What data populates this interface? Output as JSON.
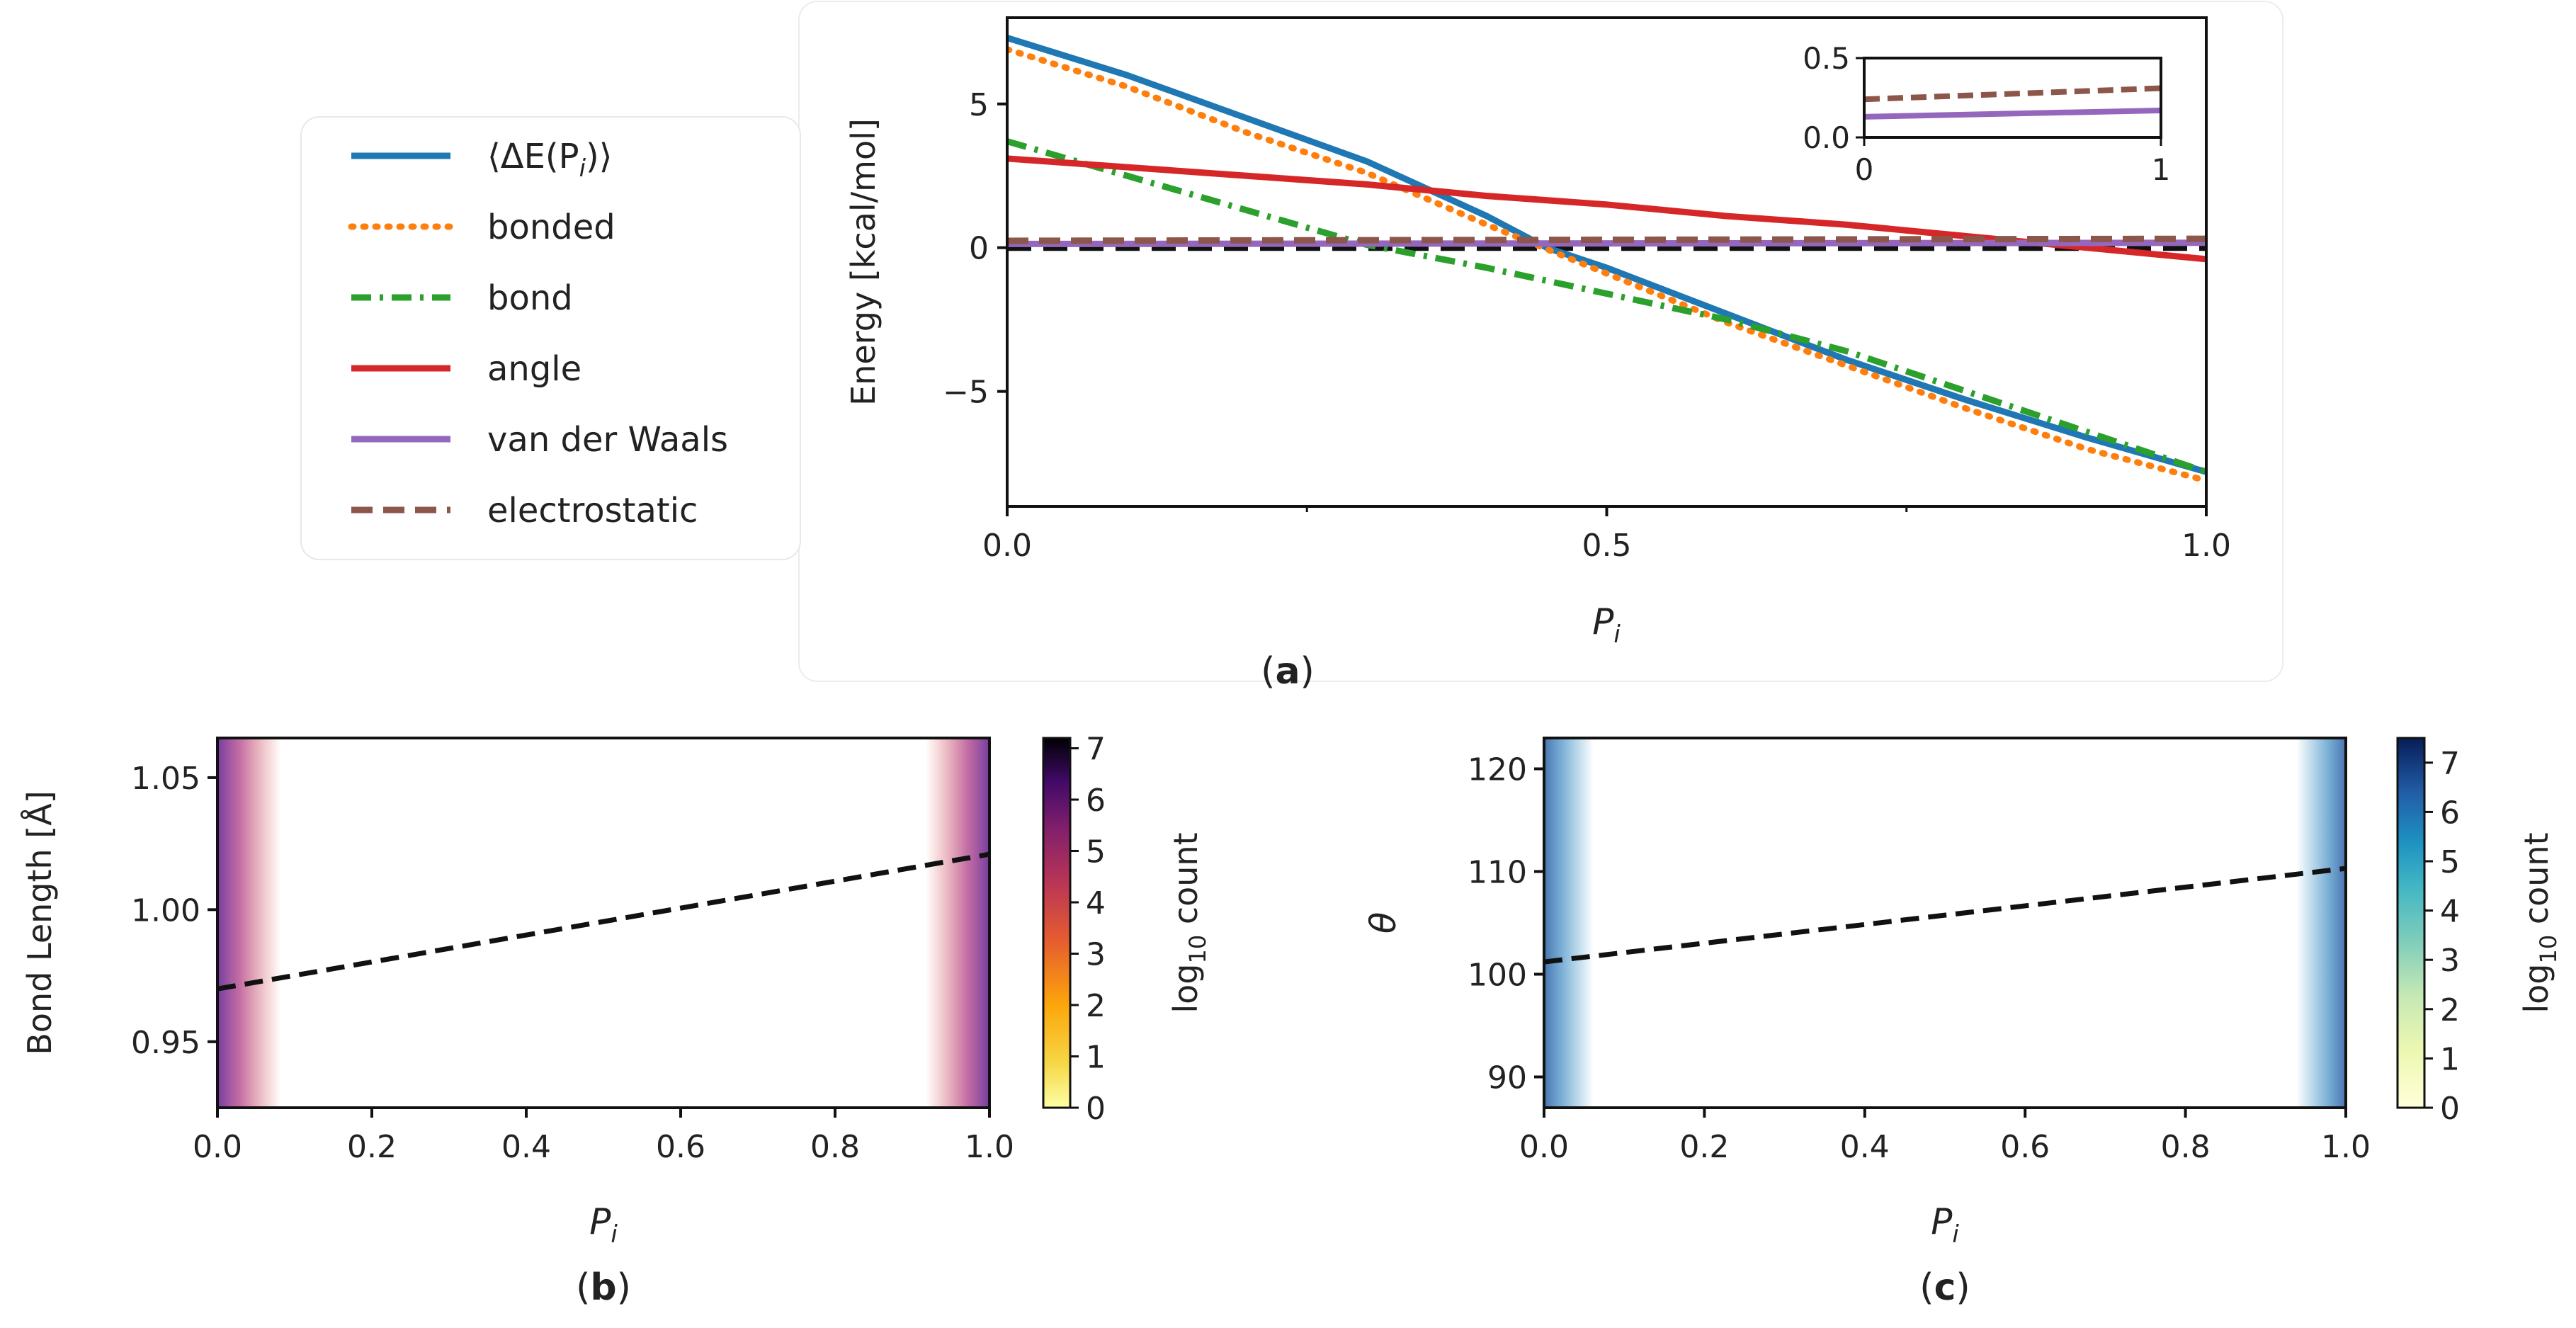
{
  "chart_data": [
    {
      "panel": "a",
      "type": "line",
      "caption": "a",
      "xlabel": "P",
      "xlabel_sub": "i",
      "ylabel": "Energy [kcal/mol]",
      "xlim": [
        0,
        1
      ],
      "ylim": [
        -9,
        8
      ],
      "xticks": [
        0.0,
        0.5,
        1.0
      ],
      "xtick_labels": [
        "0.0",
        "0.5",
        "1.0"
      ],
      "yticks": [
        -5,
        0,
        5
      ],
      "ytick_labels": [
        "−5",
        "0",
        "5"
      ],
      "legend_position": "left, outside plot",
      "reference_line": {
        "y": 0,
        "color": "#111111",
        "dash": "dashed"
      },
      "series": [
        {
          "name": "⟨ΔE(P",
          "name_sub": "i",
          "name_tail": ")⟩",
          "color": "#1f77b4",
          "style": "solid",
          "x": [
            0.0,
            0.1,
            0.2,
            0.3,
            0.4,
            0.45,
            0.5,
            0.6,
            0.7,
            0.8,
            0.9,
            1.0
          ],
          "y": [
            7.3,
            6.0,
            4.5,
            3.0,
            1.1,
            0.0,
            -0.7,
            -2.3,
            -3.9,
            -5.3,
            -6.6,
            -7.8
          ]
        },
        {
          "name": "bonded",
          "color": "#ff7f0e",
          "style": "dotted",
          "x": [
            0.0,
            0.1,
            0.2,
            0.3,
            0.4,
            0.5,
            0.6,
            0.7,
            0.8,
            0.9,
            1.0
          ],
          "y": [
            6.9,
            5.6,
            4.0,
            2.6,
            0.8,
            -0.9,
            -2.6,
            -4.1,
            -5.6,
            -7.0,
            -8.1
          ]
        },
        {
          "name": "bond",
          "color": "#2ca02c",
          "style": "dashdot",
          "x": [
            0.0,
            0.1,
            0.2,
            0.3,
            0.4,
            0.5,
            0.6,
            0.7,
            0.8,
            0.9,
            1.0
          ],
          "y": [
            3.7,
            2.5,
            1.3,
            0.1,
            -0.7,
            -1.6,
            -2.5,
            -3.6,
            -5.0,
            -6.4,
            -7.8
          ]
        },
        {
          "name": "angle",
          "color": "#d62728",
          "style": "solid",
          "x": [
            0.0,
            0.1,
            0.2,
            0.3,
            0.4,
            0.5,
            0.6,
            0.7,
            0.8,
            0.9,
            1.0
          ],
          "y": [
            3.1,
            2.8,
            2.5,
            2.2,
            1.8,
            1.5,
            1.1,
            0.8,
            0.4,
            0.0,
            -0.4
          ]
        },
        {
          "name": "van der Waals",
          "color": "#9467bd",
          "style": "solid",
          "x": [
            0.0,
            1.0
          ],
          "y": [
            0.13,
            0.17
          ]
        },
        {
          "name": "electrostatic",
          "color": "#8c564b",
          "style": "dashed",
          "x": [
            0.0,
            1.0
          ],
          "y": [
            0.24,
            0.31
          ]
        }
      ],
      "inset": {
        "xlim": [
          0,
          1
        ],
        "ylim": [
          0,
          0.5
        ],
        "xtick_labels": [
          "0",
          "1"
        ],
        "ytick_labels": [
          "0.0",
          "0.5"
        ],
        "series": [
          {
            "name": "van der Waals",
            "color": "#9467bd",
            "style": "solid",
            "x": [
              0,
              1
            ],
            "y": [
              0.13,
              0.17
            ]
          },
          {
            "name": "electrostatic",
            "color": "#8c564b",
            "style": "dashed",
            "x": [
              0,
              1
            ],
            "y": [
              0.24,
              0.31
            ]
          }
        ]
      }
    },
    {
      "panel": "b",
      "type": "heatmap",
      "caption": "b",
      "xlabel": "P",
      "xlabel_sub": "i",
      "ylabel": "Bond Length [Å]",
      "xlim": [
        0,
        1
      ],
      "ylim": [
        0.925,
        1.065
      ],
      "xtick_labels": [
        "0.0",
        "0.2",
        "0.4",
        "0.6",
        "0.8",
        "1.0"
      ],
      "xticks": [
        0.0,
        0.2,
        0.4,
        0.6,
        0.8,
        1.0
      ],
      "yticks": [
        0.95,
        1.0,
        1.05
      ],
      "ytick_labels": [
        "0.95",
        "1.00",
        "1.05"
      ],
      "colormap": "inferno_r",
      "colorbar_label": "log",
      "colorbar_label_sub": "10",
      "colorbar_label_tail": " count",
      "colorbar_ticks": [
        "0",
        "1",
        "2",
        "3",
        "4",
        "5",
        "6",
        "7"
      ],
      "colorbar_range": [
        0,
        7.2
      ],
      "trend": {
        "x": [
          0.0,
          1.0
        ],
        "y": [
          0.97,
          1.021
        ],
        "style": "dashed",
        "color": "#111111"
      },
      "spread_half_width": [
        0.03,
        0.045
      ]
    },
    {
      "panel": "c",
      "type": "heatmap",
      "caption": "c",
      "xlabel": "P",
      "xlabel_sub": "i",
      "ylabel": "θ",
      "xlim": [
        0,
        1
      ],
      "ylim": [
        87,
        123
      ],
      "xtick_labels": [
        "0.0",
        "0.2",
        "0.4",
        "0.6",
        "0.8",
        "1.0"
      ],
      "xticks": [
        0.0,
        0.2,
        0.4,
        0.6,
        0.8,
        1.0
      ],
      "yticks": [
        90,
        100,
        110,
        120
      ],
      "ytick_labels": [
        "90",
        "100",
        "110",
        "120"
      ],
      "colormap": "YlGnBu",
      "colorbar_label": "log",
      "colorbar_label_sub": "10",
      "colorbar_label_tail": " count",
      "colorbar_ticks": [
        "0",
        "1",
        "2",
        "3",
        "4",
        "5",
        "6",
        "7"
      ],
      "colorbar_range": [
        0,
        7.5
      ],
      "trend": {
        "x": [
          0.0,
          1.0
        ],
        "y": [
          101.2,
          110.3
        ],
        "style": "dashed",
        "color": "#111111"
      },
      "spread_half_width": [
        9,
        11
      ]
    }
  ]
}
